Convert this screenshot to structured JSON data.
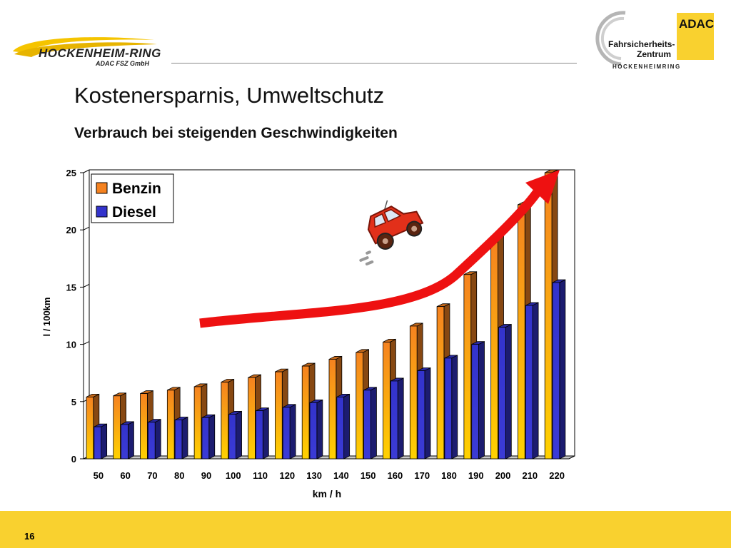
{
  "header": {
    "left_logo": {
      "name": "HOCKENHEIM-RING",
      "sub": "ADAC FSZ GmbH"
    },
    "right_logo": {
      "brand": "ADAC",
      "line1": "Fahrsicherheits-",
      "line2": "Zentrum",
      "line3": "HOCKENHEIMRING"
    }
  },
  "slide": {
    "title": "Kostenersparnis, Umweltschutz",
    "subtitle": "Verbrauch bei steigenden Geschwindigkeiten",
    "page_number": "16"
  },
  "chart_data": {
    "type": "bar",
    "title": "",
    "xlabel": "km / h",
    "ylabel": "l / 100km",
    "ylim": [
      0,
      25
    ],
    "yticks": [
      0,
      5,
      10,
      15,
      20,
      25
    ],
    "grid": true,
    "legend_position": "top-left",
    "categories": [
      "50",
      "60",
      "70",
      "80",
      "90",
      "100",
      "110",
      "120",
      "130",
      "140",
      "150",
      "160",
      "170",
      "180",
      "190",
      "200",
      "210",
      "220"
    ],
    "series": [
      {
        "name": "Benzin",
        "color": "#f58220",
        "values": [
          5.4,
          5.5,
          5.7,
          6.0,
          6.3,
          6.7,
          7.1,
          7.6,
          8.1,
          8.7,
          9.3,
          10.2,
          11.6,
          13.3,
          16.1,
          19.2,
          22.2,
          25.0
        ]
      },
      {
        "name": "Diesel",
        "color": "#3333cc",
        "values": [
          2.8,
          3.0,
          3.2,
          3.4,
          3.6,
          3.9,
          4.2,
          4.5,
          4.9,
          5.4,
          6.0,
          6.8,
          7.7,
          8.8,
          10.0,
          11.5,
          13.4,
          15.4
        ]
      }
    ]
  }
}
